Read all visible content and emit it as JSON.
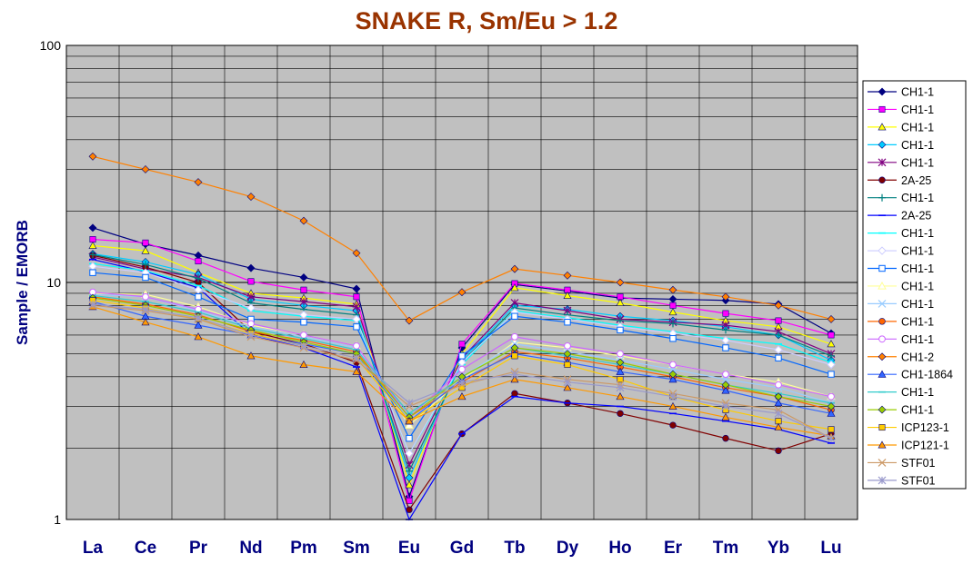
{
  "chart_data": {
    "type": "line",
    "title": "SNAKE R, Sm/Eu > 1.2",
    "ylabel": "Sample / EMORB",
    "xlabel": "",
    "yscale": "log",
    "ylim": [
      1,
      100
    ],
    "y_tick_labels": [
      "1",
      "10",
      "100"
    ],
    "categories": [
      "La",
      "Ce",
      "Pr",
      "Nd",
      "Pm",
      "Sm",
      "Eu",
      "Gd",
      "Tb",
      "Dy",
      "Ho",
      "Er",
      "Tm",
      "Yb",
      "Lu"
    ],
    "grid": true,
    "legend_position": "right",
    "colors": {
      "title": "#993300",
      "axis_label": "#000080",
      "plot_background": "#c0c0c0",
      "gridline": "#000000"
    },
    "series": [
      {
        "name": "CH1-1",
        "color": "#000080",
        "marker": "diamond",
        "values": [
          17,
          14.5,
          13,
          11.5,
          10.5,
          9.4,
          1.25,
          5.3,
          9.8,
          9.2,
          8.6,
          8.5,
          8.4,
          8.1,
          6.1
        ]
      },
      {
        "name": "CH1-1",
        "color": "#ff00ff",
        "marker": "square",
        "values": [
          15.2,
          14.7,
          12.3,
          10.1,
          9.3,
          8.7,
          1.2,
          5.5,
          9.9,
          9.3,
          8.7,
          8.0,
          7.4,
          6.9,
          6.0
        ]
      },
      {
        "name": "CH1-1",
        "color": "#ffff00",
        "marker": "triangle",
        "values": [
          14.3,
          13.6,
          11,
          9.0,
          8.6,
          8.1,
          1.4,
          5.0,
          9.5,
          8.8,
          8.2,
          7.5,
          6.9,
          6.5,
          5.5
        ]
      },
      {
        "name": "CH1-1",
        "color": "#00ccff",
        "marker": "diamond",
        "values": [
          13.2,
          12.2,
          10.8,
          8.5,
          8.0,
          7.6,
          1.5,
          4.7,
          8.0,
          7.7,
          7.2,
          6.9,
          6.5,
          6.0,
          4.7
        ]
      },
      {
        "name": "CH1-1",
        "color": "#800080",
        "marker": "star",
        "values": [
          12.8,
          11.4,
          10.5,
          8.7,
          8.3,
          7.9,
          1.7,
          4.8,
          8.2,
          7.6,
          7.0,
          6.8,
          6.6,
          6.2,
          5.0
        ]
      },
      {
        "name": "2A-25",
        "color": "#800000",
        "marker": "circle",
        "values": [
          13,
          11.6,
          10,
          6.2,
          5.5,
          4.6,
          1.1,
          2.3,
          3.4,
          3.1,
          2.8,
          2.5,
          2.2,
          1.95,
          2.3
        ]
      },
      {
        "name": "CH1-1",
        "color": "#008080",
        "marker": "plus",
        "values": [
          13.1,
          11.9,
          10.4,
          8.2,
          7.7,
          7.3,
          1.6,
          4.6,
          7.8,
          7.3,
          6.9,
          6.7,
          6.3,
          6.0,
          4.9
        ]
      },
      {
        "name": "2A-25",
        "color": "#0000ff",
        "marker": "dash",
        "values": [
          12.5,
          11.1,
          9.5,
          6.0,
          5.3,
          4.4,
          1.0,
          2.3,
          3.3,
          3.1,
          3.0,
          2.8,
          2.6,
          2.4,
          2.1
        ]
      },
      {
        "name": "CH1-1",
        "color": "#00ffff",
        "marker": "dash",
        "values": [
          12,
          11.2,
          9.7,
          7.6,
          7.2,
          6.9,
          1.9,
          4.5,
          7.6,
          7.1,
          6.6,
          6.2,
          5.8,
          5.5,
          4.6
        ]
      },
      {
        "name": "CH1-1",
        "color": "#ccccff",
        "marker": "diamond-open",
        "values": [
          11.7,
          11.0,
          9.3,
          7.8,
          7.3,
          7.0,
          1.9,
          4.6,
          7.5,
          7.0,
          6.5,
          6.1,
          5.7,
          5.2,
          4.5
        ]
      },
      {
        "name": "CH1-1",
        "color": "#0066ff",
        "marker": "square-open",
        "values": [
          11,
          10.5,
          8.7,
          7.0,
          6.8,
          6.5,
          2.2,
          4.9,
          7.2,
          6.8,
          6.3,
          5.8,
          5.3,
          4.8,
          4.1
        ]
      },
      {
        "name": "CH1-1",
        "color": "#ffff99",
        "marker": "triangle-open",
        "values": [
          9.0,
          8.9,
          7.9,
          6.6,
          6.0,
          5.4,
          2.5,
          3.9,
          5.6,
          5.3,
          4.9,
          4.5,
          4.1,
          3.8,
          3.3
        ]
      },
      {
        "name": "CH1-1",
        "color": "#99ccff",
        "marker": "x",
        "values": [
          8.9,
          8.7,
          7.6,
          6.5,
          5.9,
          5.3,
          2.6,
          4.0,
          5.5,
          5.1,
          4.7,
          4.3,
          3.9,
          3.6,
          3.1
        ]
      },
      {
        "name": "CH1-1",
        "color": "#ff6600",
        "marker": "circle",
        "values": [
          8.7,
          8.1,
          7.3,
          6.2,
          5.7,
          5.1,
          2.7,
          3.8,
          5.1,
          4.8,
          4.4,
          4.0,
          3.6,
          3.3,
          2.9
        ]
      },
      {
        "name": "CH1-1",
        "color": "#cc66ff",
        "marker": "circle-open",
        "values": [
          9.1,
          8.7,
          7.7,
          6.7,
          6.0,
          5.4,
          2.7,
          4.3,
          5.9,
          5.4,
          5.0,
          4.5,
          4.1,
          3.7,
          3.3
        ]
      },
      {
        "name": "CH1-2",
        "color": "#ff8000",
        "marker": "diamond",
        "values": [
          34,
          30,
          26.5,
          23,
          18.2,
          13.3,
          6.9,
          9.1,
          11.4,
          10.7,
          10.0,
          9.3,
          8.7,
          8.0,
          7.0
        ]
      },
      {
        "name": "CH1-1864",
        "color": "#3366ff",
        "marker": "triangle",
        "values": [
          8.3,
          7.2,
          6.6,
          6.0,
          5.5,
          5.0,
          2.6,
          3.9,
          5.0,
          4.6,
          4.2,
          3.9,
          3.5,
          3.1,
          2.8
        ]
      },
      {
        "name": "CH1-1",
        "color": "#33cccc",
        "marker": "dash",
        "values": [
          8.8,
          8.3,
          7.5,
          6.4,
          5.8,
          5.2,
          2.8,
          4.0,
          5.3,
          4.9,
          4.5,
          4.1,
          3.7,
          3.4,
          3.1
        ]
      },
      {
        "name": "CH1-1",
        "color": "#99cc00",
        "marker": "diamond",
        "values": [
          8.6,
          8.0,
          7.2,
          6.3,
          5.6,
          5.0,
          2.7,
          4.0,
          5.3,
          5.0,
          4.6,
          4.1,
          3.7,
          3.3,
          3.0
        ]
      },
      {
        "name": "ICP123-1",
        "color": "#ffcc00",
        "marker": "square",
        "values": [
          8.4,
          7.8,
          7.0,
          6.1,
          5.4,
          4.8,
          2.6,
          3.6,
          4.9,
          4.5,
          3.9,
          3.3,
          2.9,
          2.6,
          2.4
        ]
      },
      {
        "name": "ICP121-1",
        "color": "#ff9900",
        "marker": "triangle",
        "values": [
          7.9,
          6.8,
          5.9,
          4.9,
          4.5,
          4.2,
          2.6,
          3.3,
          3.9,
          3.6,
          3.3,
          3.0,
          2.7,
          2.45,
          2.25
        ]
      },
      {
        "name": "STF01",
        "color": "#cc9966",
        "marker": "x",
        "values": [
          8.0,
          7.6,
          7.0,
          5.9,
          5.3,
          4.7,
          3.0,
          3.7,
          4.2,
          3.9,
          3.7,
          3.4,
          3.1,
          2.9,
          2.2
        ]
      },
      {
        "name": "STF01",
        "color": "#9999cc",
        "marker": "star",
        "values": [
          8.1,
          7.7,
          7.1,
          6.0,
          5.4,
          4.8,
          3.1,
          3.8,
          4.1,
          3.8,
          3.6,
          3.3,
          3.0,
          2.8,
          2.2
        ]
      }
    ]
  }
}
